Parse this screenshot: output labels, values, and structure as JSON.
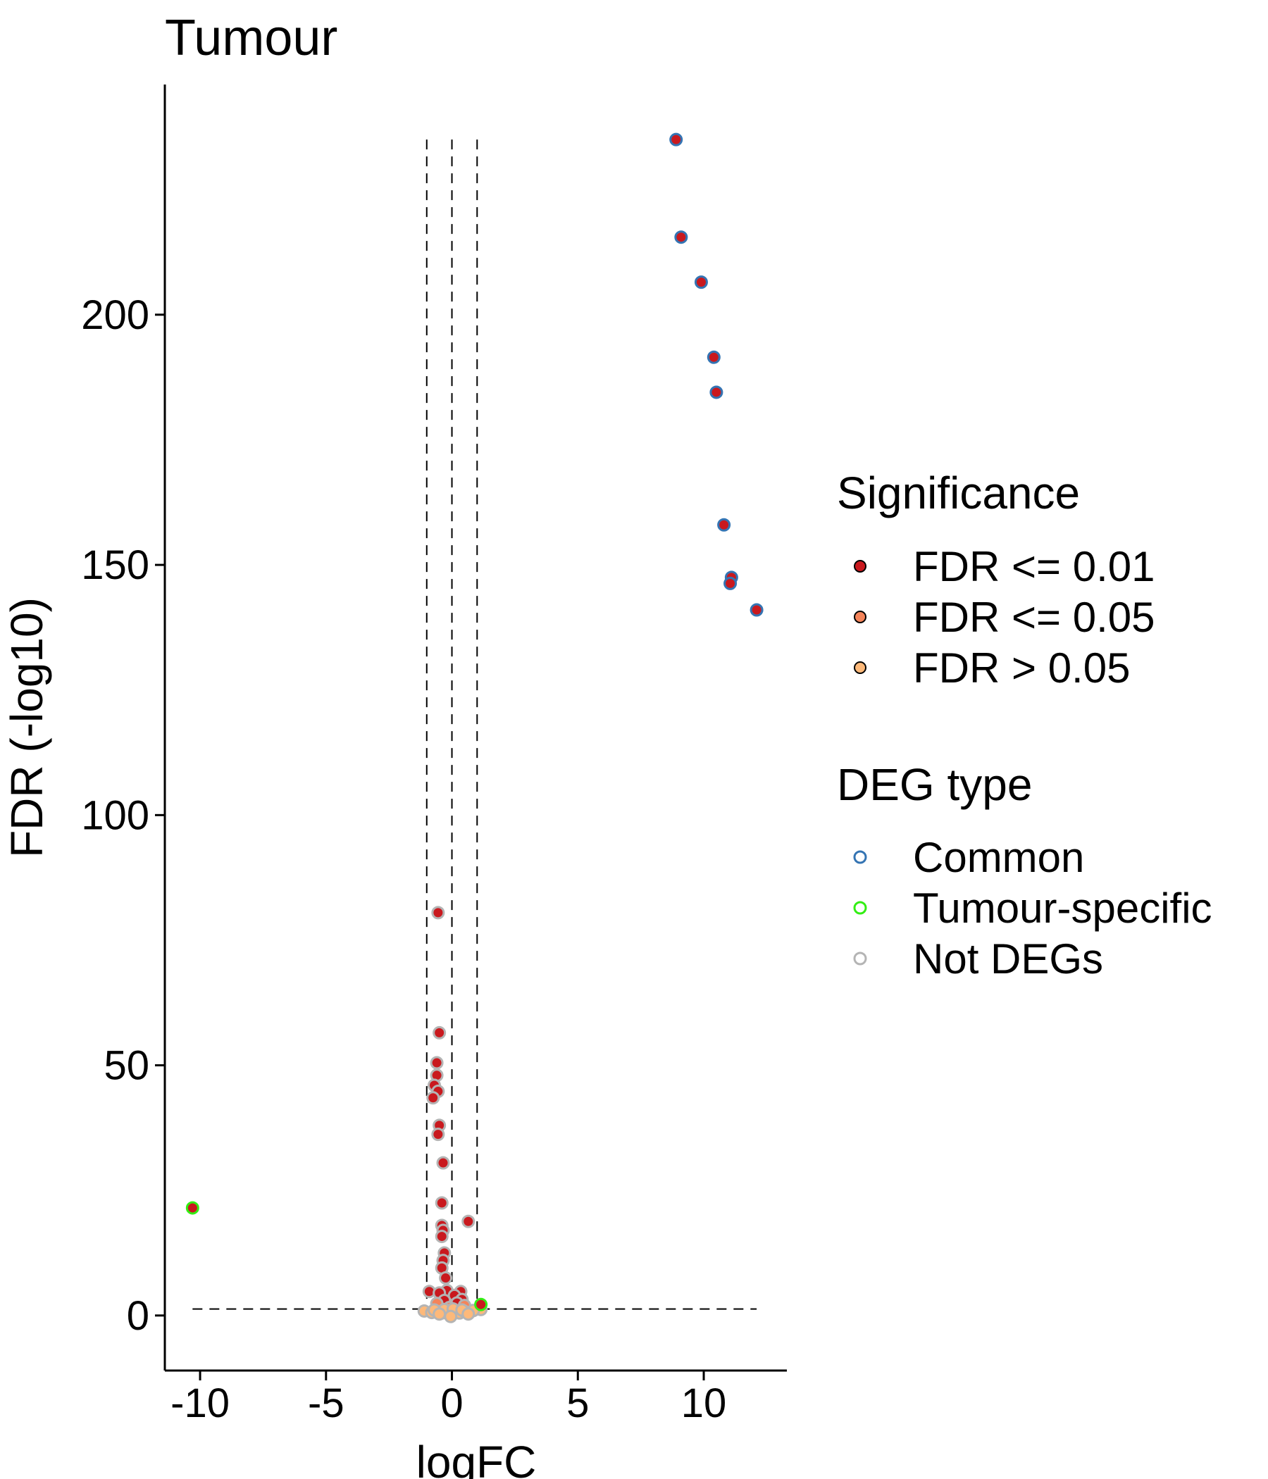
{
  "chart_data": {
    "type": "scatter",
    "title": "Tumour",
    "xlabel": "logFC",
    "ylabel": "FDR (-log10)",
    "xlim": [
      -11.4,
      13.3
    ],
    "ylim": [
      -11,
      246
    ],
    "xticks": [
      -10,
      -5,
      0,
      5,
      10
    ],
    "yticks": [
      0,
      50,
      100,
      150,
      200
    ],
    "xtick_labels": [
      "-10",
      "-5",
      "0",
      "5",
      "10"
    ],
    "ytick_labels": [
      "0",
      "50",
      "100",
      "150",
      "200"
    ],
    "grid": false,
    "threshold_lines": {
      "vertical": [
        -1,
        0,
        1
      ],
      "vertical_range": [
        0,
        235
      ],
      "horizontal": 1.3,
      "horizontal_range": [
        -10.3,
        12.1
      ]
    },
    "legend": {
      "placement": "right",
      "fill_title": "Significance",
      "fill_entries": [
        {
          "label": "FDR <= 0.01",
          "color": "#c9191e"
        },
        {
          "label": "FDR <= 0.05",
          "color": "#f4845a"
        },
        {
          "label": "FDR > 0.05",
          "color": "#fdb97a"
        }
      ],
      "outline_title": "DEG type",
      "outline_entries": [
        {
          "label": "Common",
          "color": "#3474b3"
        },
        {
          "label": "Tumour-specific",
          "color": "#33ee14"
        },
        {
          "label": "Not DEGs",
          "color": "#b4b4b4"
        }
      ]
    },
    "points": [
      {
        "x": 8.9,
        "y": 235,
        "sig": "FDR <= 0.01",
        "deg": "Common"
      },
      {
        "x": 9.1,
        "y": 215.5,
        "sig": "FDR <= 0.01",
        "deg": "Common"
      },
      {
        "x": 9.9,
        "y": 206.5,
        "sig": "FDR <= 0.01",
        "deg": "Common"
      },
      {
        "x": 10.4,
        "y": 191.5,
        "sig": "FDR <= 0.01",
        "deg": "Common"
      },
      {
        "x": 10.5,
        "y": 184.5,
        "sig": "FDR <= 0.01",
        "deg": "Common"
      },
      {
        "x": 10.8,
        "y": 158,
        "sig": "FDR <= 0.01",
        "deg": "Common"
      },
      {
        "x": 11.1,
        "y": 147.5,
        "sig": "FDR <= 0.01",
        "deg": "Common"
      },
      {
        "x": 11.05,
        "y": 146.3,
        "sig": "FDR <= 0.01",
        "deg": "Common"
      },
      {
        "x": 12.1,
        "y": 141,
        "sig": "FDR <= 0.01",
        "deg": "Common"
      },
      {
        "x": -10.3,
        "y": 21.5,
        "sig": "FDR <= 0.01",
        "deg": "Tumour-specific"
      },
      {
        "x": 1.15,
        "y": 2.2,
        "sig": "FDR <= 0.01",
        "deg": "Tumour-specific"
      },
      {
        "x": -0.55,
        "y": 80.5,
        "sig": "FDR <= 0.01",
        "deg": "Not DEGs"
      },
      {
        "x": -0.5,
        "y": 56.5,
        "sig": "FDR <= 0.01",
        "deg": "Not DEGs"
      },
      {
        "x": -0.6,
        "y": 50.5,
        "sig": "FDR <= 0.01",
        "deg": "Not DEGs"
      },
      {
        "x": -0.6,
        "y": 48,
        "sig": "FDR <= 0.01",
        "deg": "Not DEGs"
      },
      {
        "x": -0.7,
        "y": 46,
        "sig": "FDR <= 0.01",
        "deg": "Not DEGs"
      },
      {
        "x": -0.55,
        "y": 44.8,
        "sig": "FDR <= 0.01",
        "deg": "Not DEGs"
      },
      {
        "x": -0.75,
        "y": 43.5,
        "sig": "FDR <= 0.01",
        "deg": "Not DEGs"
      },
      {
        "x": -0.5,
        "y": 38,
        "sig": "FDR <= 0.01",
        "deg": "Not DEGs"
      },
      {
        "x": -0.55,
        "y": 36.2,
        "sig": "FDR <= 0.01",
        "deg": "Not DEGs"
      },
      {
        "x": -0.35,
        "y": 30.5,
        "sig": "FDR <= 0.01",
        "deg": "Not DEGs"
      },
      {
        "x": -0.4,
        "y": 22.5,
        "sig": "FDR <= 0.01",
        "deg": "Not DEGs"
      },
      {
        "x": 0.65,
        "y": 18.8,
        "sig": "FDR <= 0.01",
        "deg": "Not DEGs"
      },
      {
        "x": -0.4,
        "y": 18,
        "sig": "FDR <= 0.01",
        "deg": "Not DEGs"
      },
      {
        "x": -0.35,
        "y": 17,
        "sig": "FDR <= 0.01",
        "deg": "Not DEGs"
      },
      {
        "x": -0.4,
        "y": 15.8,
        "sig": "FDR <= 0.01",
        "deg": "Not DEGs"
      },
      {
        "x": -0.3,
        "y": 12.5,
        "sig": "FDR <= 0.01",
        "deg": "Not DEGs"
      },
      {
        "x": -0.35,
        "y": 11,
        "sig": "FDR <= 0.01",
        "deg": "Not DEGs"
      },
      {
        "x": -0.4,
        "y": 9.5,
        "sig": "FDR <= 0.01",
        "deg": "Not DEGs"
      },
      {
        "x": -0.25,
        "y": 7.5,
        "sig": "FDR <= 0.01",
        "deg": "Not DEGs"
      },
      {
        "x": -0.2,
        "y": 5,
        "sig": "FDR <= 0.01",
        "deg": "Not DEGs"
      },
      {
        "x": -0.9,
        "y": 4.8,
        "sig": "FDR <= 0.01",
        "deg": "Not DEGs"
      },
      {
        "x": 0.35,
        "y": 4.8,
        "sig": "FDR <= 0.01",
        "deg": "Not DEGs"
      },
      {
        "x": -0.5,
        "y": 4.5,
        "sig": "FDR <= 0.01",
        "deg": "Not DEGs"
      },
      {
        "x": 0.1,
        "y": 4,
        "sig": "FDR <= 0.01",
        "deg": "Not DEGs"
      },
      {
        "x": 0.4,
        "y": 3.2,
        "sig": "FDR <= 0.01",
        "deg": "Not DEGs"
      },
      {
        "x": -0.3,
        "y": 3,
        "sig": "FDR <= 0.01",
        "deg": "Not DEGs"
      },
      {
        "x": 0.2,
        "y": 2.5,
        "sig": "FDR <= 0.01",
        "deg": "Not DEGs"
      },
      {
        "x": -0.6,
        "y": 2.4,
        "sig": "FDR <= 0.05",
        "deg": "Not DEGs"
      },
      {
        "x": 0.5,
        "y": 2,
        "sig": "FDR <= 0.05",
        "deg": "Not DEGs"
      },
      {
        "x": -0.1,
        "y": 1.6,
        "sig": "FDR <= 0.05",
        "deg": "Not DEGs"
      },
      {
        "x": 1.15,
        "y": 1.2,
        "sig": "FDR > 0.05",
        "deg": "Not DEGs"
      },
      {
        "x": -1.1,
        "y": 0.9,
        "sig": "FDR > 0.05",
        "deg": "Not DEGs"
      },
      {
        "x": -0.8,
        "y": 0.6,
        "sig": "FDR > 0.05",
        "deg": "Not DEGs"
      },
      {
        "x": -0.6,
        "y": 0.8,
        "sig": "FDR > 0.05",
        "deg": "Not DEGs"
      },
      {
        "x": -0.4,
        "y": 0.5,
        "sig": "FDR > 0.05",
        "deg": "Not DEGs"
      },
      {
        "x": -0.2,
        "y": 0.7,
        "sig": "FDR > 0.05",
        "deg": "Not DEGs"
      },
      {
        "x": 0.0,
        "y": 0.2,
        "sig": "FDR > 0.05",
        "deg": "Not DEGs"
      },
      {
        "x": 0.15,
        "y": 0.9,
        "sig": "FDR > 0.05",
        "deg": "Not DEGs"
      },
      {
        "x": 0.3,
        "y": 0.5,
        "sig": "FDR > 0.05",
        "deg": "Not DEGs"
      },
      {
        "x": 0.5,
        "y": 0.8,
        "sig": "FDR > 0.05",
        "deg": "Not DEGs"
      },
      {
        "x": 0.7,
        "y": 0.6,
        "sig": "FDR > 0.05",
        "deg": "Not DEGs"
      },
      {
        "x": 0.85,
        "y": 1.0,
        "sig": "FDR > 0.05",
        "deg": "Not DEGs"
      },
      {
        "x": -0.7,
        "y": 1.1,
        "sig": "FDR > 0.05",
        "deg": "Not DEGs"
      },
      {
        "x": -0.3,
        "y": 1.2,
        "sig": "FDR > 0.05",
        "deg": "Not DEGs"
      },
      {
        "x": 0.05,
        "y": 1.3,
        "sig": "FDR > 0.05",
        "deg": "Not DEGs"
      },
      {
        "x": 0.4,
        "y": 1.1,
        "sig": "FDR > 0.05",
        "deg": "Not DEGs"
      },
      {
        "x": 0.65,
        "y": 0.3,
        "sig": "FDR > 0.05",
        "deg": "Not DEGs"
      },
      {
        "x": -0.5,
        "y": 0.3,
        "sig": "FDR > 0.05",
        "deg": "Not DEGs"
      },
      {
        "x": -0.05,
        "y": -0.2,
        "sig": "FDR > 0.05",
        "deg": "Not DEGs"
      }
    ]
  }
}
